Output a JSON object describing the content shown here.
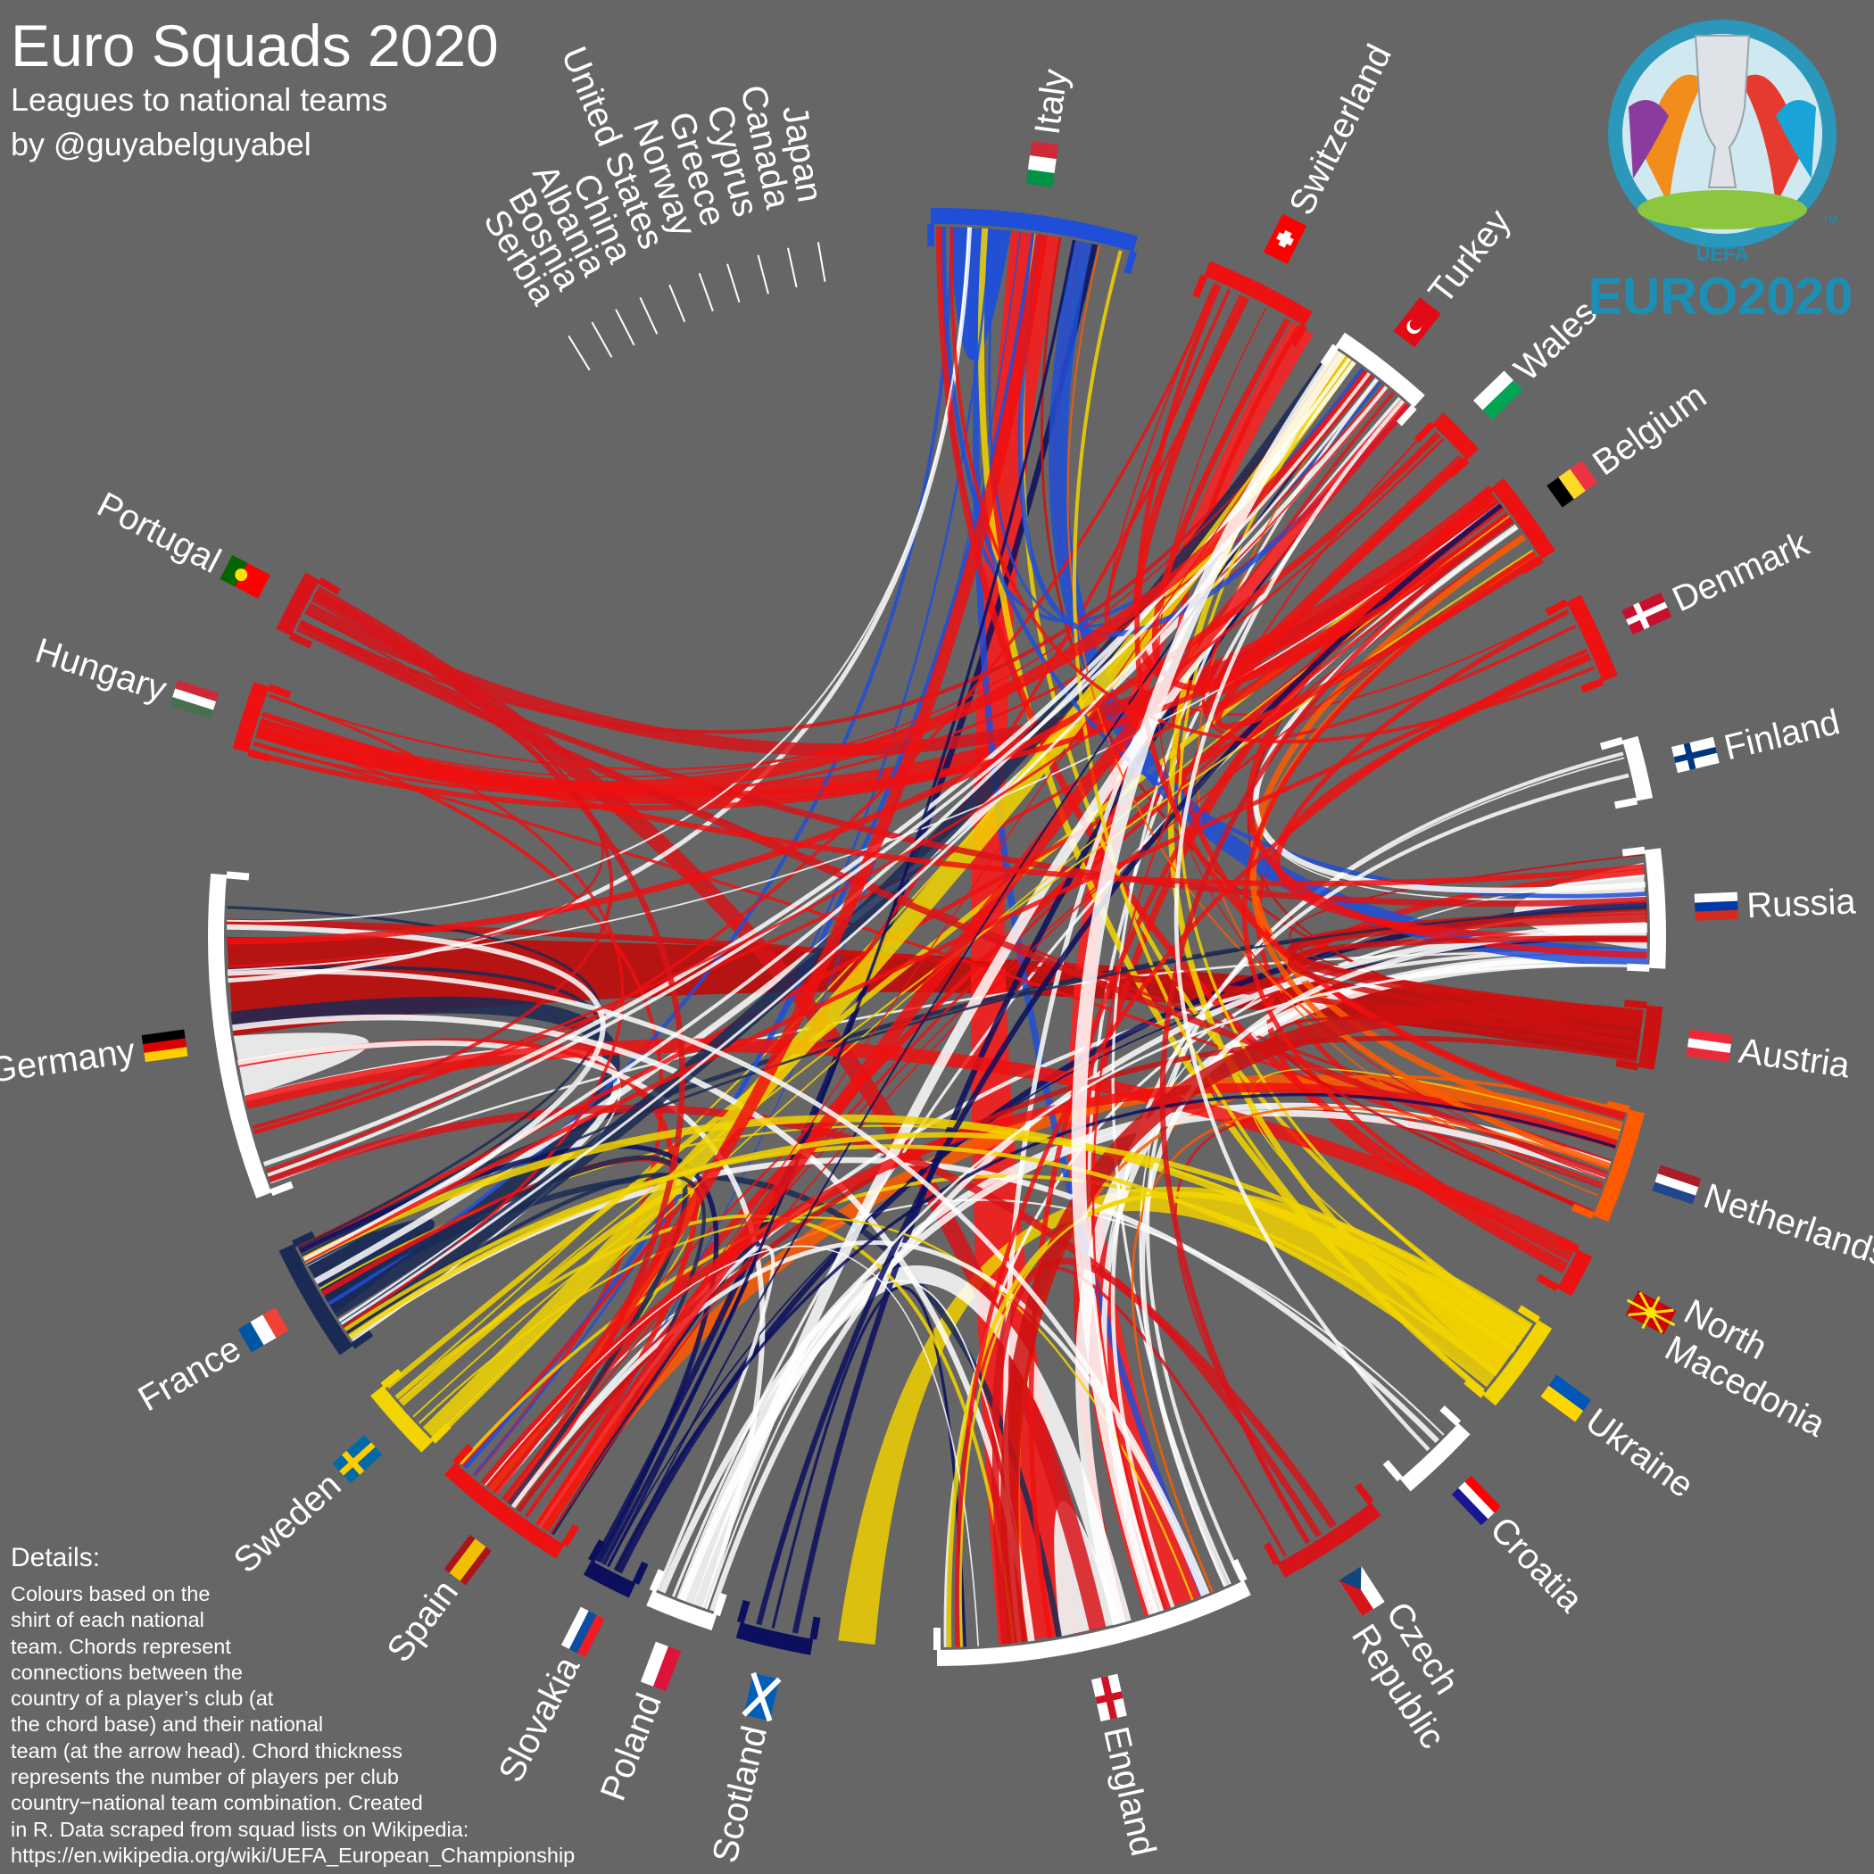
{
  "header": {
    "title": "Euro Squads 2020",
    "subtitle": "Leagues to national teams",
    "byline": "by @guyabelguyabel"
  },
  "details": {
    "heading": "Details:",
    "text": "Colours based on the\nshirt of each national\nteam. Chords represent\nconnections between the\ncountry of a player’s club (at\nthe chord base) and their national\nteam (at the arrow head). Chord thickness\nrepresents the number of players per club\ncountry−national team combination. Created\nin R. Data scraped from squad lists on Wikipedia:\nhttps://en.wikipedia.org/wiki/UEFA_European_Championship"
  },
  "logo": {
    "text": "EURO2020",
    "org": "UEFA",
    "tm": "TM",
    "colors": {
      "ring": "#2aa3c8",
      "text": "#1e8fb4",
      "cup": "#d9dde2"
    }
  },
  "sectors": [
    {
      "id": "italy",
      "label": "Italy",
      "color": "#1f4fd8",
      "flag": [
        "#009246",
        "#ffffff",
        "#ce2b37"
      ],
      "flagDir": "v"
    },
    {
      "id": "switzerland",
      "label": "Switzerland",
      "color": "#ee1111",
      "flag": "swiss"
    },
    {
      "id": "turkey",
      "label": "Turkey",
      "color": "#ffffff",
      "flag": "turkey"
    },
    {
      "id": "wales",
      "label": "Wales",
      "color": "#ee1111",
      "flag": [
        "#ffffff",
        "#00a651"
      ],
      "flagDir": "h"
    },
    {
      "id": "belgium",
      "label": "Belgium",
      "color": "#ee1111",
      "flag": [
        "#000000",
        "#fdda24",
        "#ef3340"
      ],
      "flagDir": "v"
    },
    {
      "id": "denmark",
      "label": "Denmark",
      "color": "#ee1111",
      "flag": "nordic-dk"
    },
    {
      "id": "finland",
      "label": "Finland",
      "color": "#ffffff",
      "flag": "nordic-fi"
    },
    {
      "id": "russia",
      "label": "Russia",
      "color": "#ffffff",
      "flag": [
        "#ffffff",
        "#0039a6",
        "#d52b1e"
      ],
      "flagDir": "h"
    },
    {
      "id": "austria",
      "label": "Austria",
      "color": "#cc1111",
      "flag": [
        "#ed2939",
        "#ffffff",
        "#ed2939"
      ],
      "flagDir": "h"
    },
    {
      "id": "netherlands",
      "label": "Netherlands",
      "color": "#ff5a00",
      "flag": [
        "#ae1c28",
        "#ffffff",
        "#21468b"
      ],
      "flagDir": "h"
    },
    {
      "id": "north-macedonia",
      "label": "North Macedonia",
      "color": "#ee1111",
      "flag": "macedonia"
    },
    {
      "id": "ukraine",
      "label": "Ukraine",
      "color": "#f2d500",
      "flag": [
        "#0057b7",
        "#ffd700"
      ],
      "flagDir": "h"
    },
    {
      "id": "croatia",
      "label": "Croatia",
      "color": "#ffffff",
      "flag": [
        "#ff0000",
        "#ffffff",
        "#171796"
      ],
      "flagDir": "h"
    },
    {
      "id": "czech-republic",
      "label": "Czech Republic",
      "color": "#d7141a",
      "flag": "czech"
    },
    {
      "id": "england",
      "label": "England",
      "color": "#ffffff",
      "flag": "cross-red"
    },
    {
      "id": "scotland",
      "label": "Scotland",
      "color": "#0b0f5e",
      "flag": "saltire"
    },
    {
      "id": "poland",
      "label": "Poland",
      "color": "#ffffff",
      "flag": [
        "#ffffff",
        "#dc143c"
      ],
      "flagDir": "h"
    },
    {
      "id": "slovakia",
      "label": "Slovakia",
      "color": "#0b0f5e",
      "flag": [
        "#ffffff",
        "#0b4ea2",
        "#ee1c25"
      ],
      "flagDir": "h"
    },
    {
      "id": "spain",
      "label": "Spain",
      "color": "#ee1111",
      "flag": [
        "#aa151b",
        "#f1bf00",
        "#f1bf00",
        "#aa151b"
      ],
      "flagDir": "h"
    },
    {
      "id": "sweden",
      "label": "Sweden",
      "color": "#f2d500",
      "flag": "nordic-se"
    },
    {
      "id": "france",
      "label": "France",
      "color": "#1a2a55",
      "flag": [
        "#0055a4",
        "#ffffff",
        "#ef4135"
      ],
      "flagDir": "v"
    },
    {
      "id": "germany",
      "label": "Germany",
      "color": "#ffffff",
      "flag": [
        "#000000",
        "#dd0000",
        "#ffce00"
      ],
      "flagDir": "h"
    },
    {
      "id": "hungary",
      "label": "Hungary",
      "color": "#ee1111",
      "flag": [
        "#ce2939",
        "#ffffff",
        "#477050"
      ],
      "flagDir": "h"
    },
    {
      "id": "portugal",
      "label": "Portugal",
      "color": "#d7141a",
      "flag": "portugal"
    }
  ],
  "minor_leagues": [
    "Serbia",
    "Bosnia",
    "Albania",
    "China",
    "United States",
    "Norway",
    "Greece",
    "Cyprus",
    "Canada",
    "Japan"
  ]
}
